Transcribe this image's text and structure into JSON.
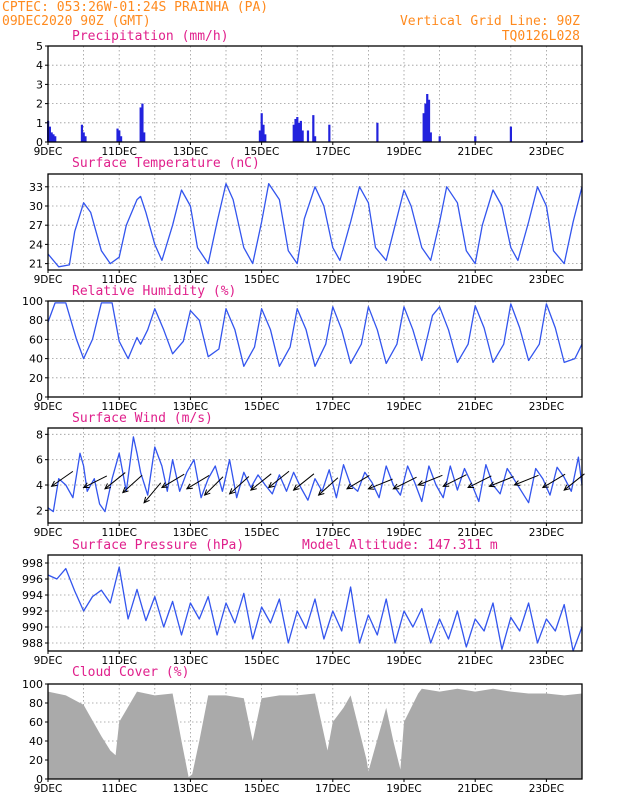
{
  "header": {
    "line1": "CPTEC:  053:26W-01:24S  PRAINHA (PA)",
    "line2": "09DEC2020 90Z (GMT)",
    "grid_note": "Vertical Grid Line: 90Z",
    "code": "TQ0126L028"
  },
  "model_altitude": "Model Altitude: 147.311 m",
  "colors": {
    "header": "#ff8a1e",
    "title": "#e0208c",
    "line": "#3355ee",
    "bar": "#2222dd",
    "cloud": "#aaaaaa"
  },
  "x_axis": {
    "range": [
      9,
      24
    ],
    "ticks": [
      9,
      11,
      13,
      15,
      17,
      19,
      21,
      23
    ],
    "tick_labels": [
      "9DEC",
      "11DEC",
      "13DEC",
      "15DEC",
      "17DEC",
      "19DEC",
      "21DEC",
      "23DEC"
    ]
  },
  "chart_data": [
    {
      "type": "bar",
      "title": "Precipitation (mm/h)",
      "ylim": [
        0,
        5
      ],
      "yticks": [
        0,
        1,
        2,
        3,
        4,
        5
      ],
      "x": [
        9.0,
        9.05,
        9.1,
        9.15,
        9.2,
        9.95,
        10.0,
        10.05,
        10.95,
        11.0,
        11.05,
        11.6,
        11.65,
        11.7,
        14.95,
        15.0,
        15.05,
        15.1,
        15.9,
        15.95,
        16.0,
        16.05,
        16.1,
        16.15,
        16.3,
        16.45,
        16.5,
        16.9,
        18.25,
        19.55,
        19.6,
        19.65,
        19.7,
        19.75,
        20.0,
        21.0,
        22.0,
        24.0
      ],
      "values": [
        1.1,
        0.8,
        0.5,
        0.4,
        0.3,
        0.9,
        0.5,
        0.3,
        0.7,
        0.6,
        0.3,
        1.8,
        2.0,
        0.5,
        0.6,
        1.5,
        0.9,
        0.4,
        0.9,
        1.2,
        1.3,
        1.0,
        1.1,
        0.6,
        0.6,
        1.4,
        0.3,
        0.9,
        1.0,
        1.5,
        2.0,
        2.5,
        2.2,
        0.5,
        0.3,
        0.3,
        0.8,
        0.1
      ]
    },
    {
      "type": "line",
      "title": "Surface Temperature (nC)",
      "ylim": [
        20,
        35
      ],
      "yticks": [
        21,
        24,
        27,
        30,
        33
      ],
      "x": [
        9.0,
        9.3,
        9.6,
        9.75,
        10.0,
        10.2,
        10.5,
        10.75,
        11.0,
        11.2,
        11.5,
        11.6,
        11.75,
        12.0,
        12.2,
        12.5,
        12.75,
        13.0,
        13.2,
        13.5,
        13.75,
        14.0,
        14.2,
        14.5,
        14.75,
        15.0,
        15.2,
        15.5,
        15.75,
        16.0,
        16.2,
        16.5,
        16.75,
        17.0,
        17.2,
        17.5,
        17.75,
        18.0,
        18.2,
        18.5,
        18.75,
        19.0,
        19.2,
        19.5,
        19.75,
        20.0,
        20.2,
        20.5,
        20.75,
        21.0,
        21.2,
        21.5,
        21.75,
        22.0,
        22.2,
        22.5,
        22.75,
        23.0,
        23.2,
        23.5,
        23.75,
        24.0
      ],
      "values": [
        22.5,
        20.5,
        20.8,
        26.0,
        30.5,
        29.0,
        23.0,
        21.0,
        22.0,
        27.0,
        31.0,
        31.5,
        29.0,
        24.0,
        21.5,
        27.0,
        32.5,
        30.0,
        23.5,
        21.0,
        27.5,
        33.5,
        31.0,
        23.5,
        21.0,
        27.5,
        33.5,
        31.0,
        23.0,
        21.0,
        28.0,
        33.0,
        30.0,
        23.5,
        21.5,
        27.5,
        33.0,
        30.5,
        23.5,
        21.5,
        27.0,
        32.5,
        30.0,
        23.5,
        21.5,
        27.5,
        33.0,
        30.5,
        23.0,
        21.0,
        27.0,
        32.5,
        30.0,
        23.5,
        21.5,
        27.5,
        33.0,
        30.0,
        23.0,
        21.0,
        27.5,
        33.0
      ]
    },
    {
      "type": "line",
      "title": "Relative Humidity (%)",
      "ylim": [
        0,
        100
      ],
      "yticks": [
        0,
        20,
        40,
        60,
        80,
        100
      ],
      "x": [
        9.0,
        9.2,
        9.5,
        9.8,
        10.0,
        10.25,
        10.5,
        10.8,
        11.0,
        11.25,
        11.5,
        11.6,
        11.8,
        12.0,
        12.25,
        12.5,
        12.8,
        13.0,
        13.25,
        13.5,
        13.8,
        14.0,
        14.25,
        14.5,
        14.8,
        15.0,
        15.25,
        15.5,
        15.8,
        16.0,
        16.25,
        16.5,
        16.8,
        17.0,
        17.25,
        17.5,
        17.8,
        18.0,
        18.25,
        18.5,
        18.8,
        19.0,
        19.25,
        19.5,
        19.8,
        20.0,
        20.25,
        20.5,
        20.8,
        21.0,
        21.25,
        21.5,
        21.8,
        22.0,
        22.25,
        22.5,
        22.8,
        23.0,
        23.25,
        23.5,
        23.8,
        24.0
      ],
      "values": [
        78.0,
        98.0,
        98.0,
        60.0,
        40.0,
        60.0,
        98.0,
        98.0,
        58.0,
        40.0,
        62.0,
        55.0,
        70.0,
        92.0,
        70.0,
        45.0,
        58.0,
        90.0,
        80.0,
        42.0,
        50.0,
        92.0,
        70.0,
        32.0,
        52.0,
        92.0,
        70.0,
        32.0,
        52.0,
        92.0,
        70.0,
        32.0,
        55.0,
        94.0,
        70.0,
        35.0,
        55.0,
        94.0,
        70.0,
        35.0,
        55.0,
        94.0,
        70.0,
        38.0,
        85.0,
        94.0,
        70.0,
        36.0,
        55.0,
        95.0,
        72.0,
        36.0,
        55.0,
        97.0,
        72.0,
        38.0,
        55.0,
        97.0,
        72.0,
        36.0,
        40.0,
        55.0
      ]
    },
    {
      "type": "line",
      "title": "Surface Wind (m/s)",
      "ylim": [
        1,
        8.5
      ],
      "yticks": [
        2,
        4,
        6,
        8
      ],
      "x": [
        9.0,
        9.15,
        9.3,
        9.5,
        9.7,
        9.9,
        10.0,
        10.1,
        10.3,
        10.45,
        10.6,
        10.8,
        11.0,
        11.2,
        11.4,
        11.5,
        11.6,
        11.8,
        12.0,
        12.2,
        12.35,
        12.5,
        12.7,
        12.9,
        13.1,
        13.3,
        13.5,
        13.7,
        13.9,
        14.1,
        14.3,
        14.5,
        14.7,
        14.9,
        15.1,
        15.3,
        15.5,
        15.7,
        15.9,
        16.1,
        16.3,
        16.5,
        16.7,
        16.9,
        17.1,
        17.3,
        17.5,
        17.7,
        17.9,
        18.1,
        18.3,
        18.5,
        18.7,
        18.9,
        19.1,
        19.3,
        19.5,
        19.7,
        19.9,
        20.1,
        20.3,
        20.5,
        20.7,
        20.9,
        21.1,
        21.3,
        21.5,
        21.7,
        21.9,
        22.1,
        22.3,
        22.5,
        22.7,
        22.9,
        23.1,
        23.3,
        23.5,
        23.7,
        23.9,
        24.0
      ],
      "values": [
        2.2,
        1.9,
        4.5,
        4.0,
        3.0,
        6.5,
        5.5,
        3.5,
        4.5,
        2.5,
        1.9,
        4.5,
        6.5,
        3.5,
        7.8,
        6.5,
        5.0,
        3.2,
        7.0,
        5.5,
        3.5,
        6.0,
        3.5,
        5.0,
        6.0,
        3.0,
        4.5,
        5.5,
        3.5,
        6.0,
        3.0,
        5.0,
        3.8,
        4.8,
        4.0,
        3.3,
        4.8,
        3.5,
        5.0,
        3.8,
        2.8,
        4.5,
        3.5,
        5.2,
        3.0,
        5.6,
        4.0,
        3.5,
        5.0,
        4.2,
        3.0,
        5.5,
        4.0,
        3.2,
        5.5,
        4.2,
        2.7,
        5.5,
        4.0,
        3.0,
        5.5,
        3.6,
        5.3,
        4.1,
        2.7,
        5.6,
        4.0,
        3.3,
        5.3,
        4.4,
        3.5,
        2.6,
        5.3,
        4.5,
        3.2,
        5.4,
        4.6,
        3.5,
        6.2,
        4.0
      ],
      "vectors": [
        {
          "x": 9.1,
          "y": 3.9,
          "dx": 1.0,
          "dy": 0.7
        },
        {
          "x": 10.0,
          "y": 3.8,
          "dx": 1.0,
          "dy": 0.5
        },
        {
          "x": 10.6,
          "y": 3.7,
          "dx": 1.0,
          "dy": 0.8
        },
        {
          "x": 11.1,
          "y": 3.4,
          "dx": 1.0,
          "dy": 0.9
        },
        {
          "x": 11.7,
          "y": 2.6,
          "dx": 1.0,
          "dy": 1.2
        },
        {
          "x": 12.2,
          "y": 3.8,
          "dx": 1.0,
          "dy": 0.6
        },
        {
          "x": 12.9,
          "y": 3.7,
          "dx": 1.0,
          "dy": 0.6
        },
        {
          "x": 13.4,
          "y": 3.2,
          "dx": 1.0,
          "dy": 1.0
        },
        {
          "x": 14.1,
          "y": 3.3,
          "dx": 1.0,
          "dy": 0.9
        },
        {
          "x": 14.7,
          "y": 3.6,
          "dx": 1.0,
          "dy": 0.8
        },
        {
          "x": 15.2,
          "y": 3.8,
          "dx": 1.0,
          "dy": 0.8
        },
        {
          "x": 15.9,
          "y": 3.6,
          "dx": 1.0,
          "dy": 0.8
        },
        {
          "x": 16.6,
          "y": 3.2,
          "dx": 1.0,
          "dy": 0.9
        },
        {
          "x": 17.4,
          "y": 3.7,
          "dx": 1.0,
          "dy": 0.6
        },
        {
          "x": 18.0,
          "y": 3.7,
          "dx": 1.0,
          "dy": 0.4
        },
        {
          "x": 18.7,
          "y": 3.7,
          "dx": 1.0,
          "dy": 0.5
        },
        {
          "x": 19.4,
          "y": 4.0,
          "dx": 1.0,
          "dy": 0.4
        },
        {
          "x": 20.1,
          "y": 3.9,
          "dx": 1.0,
          "dy": 0.5
        },
        {
          "x": 20.8,
          "y": 3.8,
          "dx": 1.0,
          "dy": 0.5
        },
        {
          "x": 21.4,
          "y": 3.9,
          "dx": 1.0,
          "dy": 0.4
        },
        {
          "x": 22.1,
          "y": 4.0,
          "dx": 1.0,
          "dy": 0.4
        },
        {
          "x": 22.9,
          "y": 3.8,
          "dx": 1.0,
          "dy": 0.6
        },
        {
          "x": 23.5,
          "y": 3.6,
          "dx": 1.0,
          "dy": 0.8
        }
      ]
    },
    {
      "type": "line",
      "title": "Surface Pressure (hPa)",
      "ylim": [
        987,
        999
      ],
      "yticks": [
        988,
        990,
        992,
        994,
        996,
        998
      ],
      "x": [
        9.0,
        9.25,
        9.5,
        9.75,
        10.0,
        10.25,
        10.5,
        10.75,
        11.0,
        11.25,
        11.5,
        11.75,
        12.0,
        12.25,
        12.5,
        12.75,
        13.0,
        13.25,
        13.5,
        13.75,
        14.0,
        14.25,
        14.5,
        14.75,
        15.0,
        15.25,
        15.5,
        15.75,
        16.0,
        16.25,
        16.5,
        16.75,
        17.0,
        17.25,
        17.5,
        17.75,
        18.0,
        18.25,
        18.5,
        18.75,
        19.0,
        19.25,
        19.5,
        19.75,
        20.0,
        20.25,
        20.5,
        20.75,
        21.0,
        21.25,
        21.5,
        21.75,
        22.0,
        22.25,
        22.5,
        22.75,
        23.0,
        23.25,
        23.5,
        23.75,
        24.0
      ],
      "values": [
        996.5,
        996.0,
        997.3,
        994.5,
        992.0,
        993.8,
        994.6,
        993.0,
        997.5,
        991.0,
        994.7,
        990.8,
        993.8,
        990.0,
        993.2,
        989.0,
        993.0,
        991.0,
        993.8,
        989.0,
        993.0,
        990.5,
        994.2,
        988.5,
        992.5,
        990.5,
        993.5,
        988.0,
        992.0,
        989.8,
        993.5,
        988.5,
        992.0,
        989.5,
        995.0,
        988.0,
        991.5,
        989.0,
        993.5,
        988.0,
        992.0,
        990.0,
        992.3,
        988.0,
        991.0,
        988.5,
        992.0,
        987.5,
        991.0,
        989.5,
        993.0,
        987.2,
        991.2,
        989.5,
        993.0,
        988.0,
        991.0,
        989.5,
        992.8,
        987.0,
        990.0
      ]
    },
    {
      "type": "area",
      "title": "Cloud Cover (%)",
      "ylim": [
        0,
        100
      ],
      "yticks": [
        0,
        20,
        40,
        60,
        80,
        100
      ],
      "x": [
        9.0,
        9.5,
        10.0,
        10.5,
        10.75,
        10.9,
        11.0,
        11.5,
        12.0,
        12.5,
        12.75,
        12.95,
        13.05,
        13.25,
        13.5,
        14.0,
        14.5,
        14.75,
        15.0,
        15.5,
        16.0,
        16.5,
        16.85,
        17.0,
        17.3,
        17.5,
        17.95,
        18.0,
        18.5,
        18.7,
        18.9,
        19.0,
        19.4,
        19.5,
        20.0,
        20.5,
        21.0,
        21.5,
        22.0,
        22.5,
        23.0,
        23.5,
        24.0
      ],
      "values": [
        92,
        88,
        78,
        45,
        30,
        25,
        60,
        92,
        88,
        90,
        40,
        2,
        5,
        40,
        88,
        88,
        85,
        40,
        85,
        88,
        88,
        90,
        30,
        60,
        75,
        88,
        20,
        8,
        75,
        40,
        10,
        60,
        90,
        95,
        92,
        95,
        92,
        95,
        92,
        90,
        90,
        88,
        90
      ]
    }
  ]
}
